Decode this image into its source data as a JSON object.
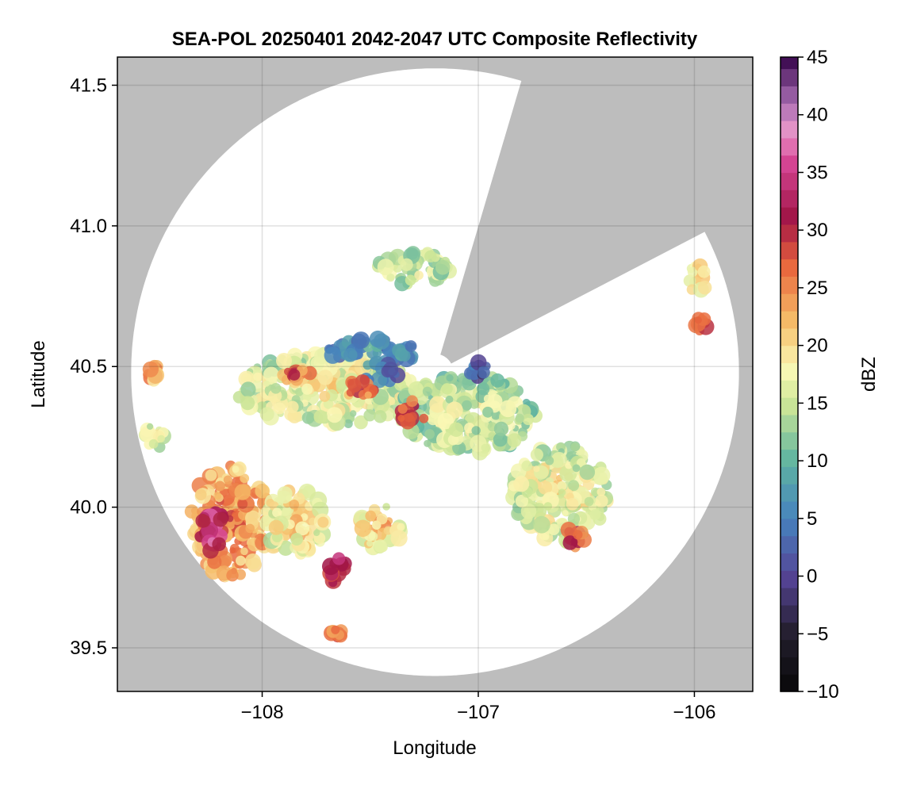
{
  "chart_data": {
    "type": "heatmap",
    "title": "SEA-POL 20250401 2042-2047 UTC Composite Reflectivity",
    "xlabel": "Longitude",
    "ylabel": "Latitude",
    "xlim": [
      -108.67,
      -105.73
    ],
    "ylim": [
      39.345,
      41.6
    ],
    "x_ticks": [
      {
        "value": -108,
        "label": "−108"
      },
      {
        "value": -107,
        "label": "−107"
      },
      {
        "value": -106,
        "label": "−106"
      }
    ],
    "y_ticks": [
      {
        "value": 39.5,
        "label": "39.5"
      },
      {
        "value": 40.0,
        "label": "40.0"
      },
      {
        "value": 40.5,
        "label": "40.5"
      },
      {
        "value": 41.0,
        "label": "41.0"
      },
      {
        "value": 41.5,
        "label": "41.5"
      }
    ],
    "grid": true,
    "background_color": "#bdbdbd",
    "radar": {
      "center_lon": -107.2,
      "center_lat": 40.48,
      "range_lat_deg": 1.08,
      "blocked_sectors": [
        {
          "az_start_deg": 17,
          "az_end_deg": 60
        },
        {
          "az_start_deg": 60.5,
          "az_end_deg": 62
        }
      ],
      "coverage_color": "#ffffff"
    },
    "colorbar": {
      "label": "dBZ",
      "vmin": -10,
      "vmax": 45,
      "step": 1.5,
      "ticks": [
        {
          "value": -10,
          "label": "−10"
        },
        {
          "value": -5,
          "label": "−5"
        },
        {
          "value": 0,
          "label": "0"
        },
        {
          "value": 5,
          "label": "5"
        },
        {
          "value": 10,
          "label": "10"
        },
        {
          "value": 15,
          "label": "15"
        },
        {
          "value": 20,
          "label": "20"
        },
        {
          "value": 25,
          "label": "25"
        },
        {
          "value": 30,
          "label": "30"
        },
        {
          "value": 35,
          "label": "35"
        },
        {
          "value": 40,
          "label": "40"
        },
        {
          "value": 45,
          "label": "45"
        }
      ],
      "colormap": "spectral-with-dark-low-and-purple-high"
    },
    "echo_regions": [
      {
        "name": "central-complex",
        "lon": -107.7,
        "lat": 40.42,
        "rlon": 0.42,
        "rlat": 0.13,
        "dbz": 15
      },
      {
        "name": "central-complex-east",
        "lon": -107.05,
        "lat": 40.33,
        "rlon": 0.32,
        "rlat": 0.14,
        "dbz": 13
      },
      {
        "name": "northern-blue-band",
        "lon": -107.5,
        "lat": 40.55,
        "rlon": 0.22,
        "rlat": 0.05,
        "dbz": 5
      },
      {
        "name": "purple-band-1",
        "lon": -107.45,
        "lat": 40.47,
        "rlon": 0.08,
        "rlat": 0.03,
        "dbz": 2
      },
      {
        "name": "purple-band-2",
        "lon": -107.0,
        "lat": 40.5,
        "rlon": 0.05,
        "rlat": 0.04,
        "dbz": 1
      },
      {
        "name": "core-a",
        "lon": -107.3,
        "lat": 40.33,
        "rlon": 0.06,
        "rlat": 0.05,
        "dbz": 28
      },
      {
        "name": "core-b",
        "lon": -107.55,
        "lat": 40.42,
        "rlon": 0.07,
        "rlat": 0.04,
        "dbz": 25
      },
      {
        "name": "core-c",
        "lon": -107.85,
        "lat": 40.47,
        "rlon": 0.08,
        "rlat": 0.02,
        "dbz": 24
      },
      {
        "name": "southwest-band",
        "lon": -108.15,
        "lat": 39.95,
        "rlon": 0.18,
        "rlat": 0.2,
        "dbz": 22
      },
      {
        "name": "southwest-core",
        "lon": -108.23,
        "lat": 39.92,
        "rlon": 0.06,
        "rlat": 0.08,
        "dbz": 32
      },
      {
        "name": "south-mid-cell",
        "lon": -107.85,
        "lat": 39.95,
        "rlon": 0.15,
        "rlat": 0.12,
        "dbz": 17
      },
      {
        "name": "south-core-line",
        "lon": -107.65,
        "lat": 39.78,
        "rlon": 0.04,
        "rlat": 0.06,
        "dbz": 30
      },
      {
        "name": "south-cell-2",
        "lon": -107.45,
        "lat": 39.93,
        "rlon": 0.1,
        "rlat": 0.08,
        "dbz": 18
      },
      {
        "name": "southeast-complex",
        "lon": -106.62,
        "lat": 40.05,
        "rlon": 0.22,
        "rlat": 0.18,
        "dbz": 15
      },
      {
        "name": "southeast-core",
        "lon": -106.55,
        "lat": 39.89,
        "rlon": 0.05,
        "rlat": 0.04,
        "dbz": 27
      },
      {
        "name": "northern-fragments",
        "lon": -107.3,
        "lat": 40.85,
        "rlon": 0.17,
        "rlat": 0.06,
        "dbz": 13
      },
      {
        "name": "northeast-cell",
        "lon": -105.99,
        "lat": 40.81,
        "rlon": 0.05,
        "rlat": 0.05,
        "dbz": 18
      },
      {
        "name": "northeast-core",
        "lon": -105.97,
        "lat": 40.65,
        "rlon": 0.025,
        "rlat": 0.025,
        "dbz": 27
      },
      {
        "name": "west-cell",
        "lon": -108.5,
        "lat": 40.48,
        "rlon": 0.035,
        "rlat": 0.03,
        "dbz": 22
      },
      {
        "name": "west-cell-2",
        "lon": -108.5,
        "lat": 40.25,
        "rlon": 0.06,
        "rlat": 0.04,
        "dbz": 16
      },
      {
        "name": "southern-specks",
        "lon": -107.65,
        "lat": 39.55,
        "rlon": 0.03,
        "rlat": 0.02,
        "dbz": 24
      }
    ]
  }
}
